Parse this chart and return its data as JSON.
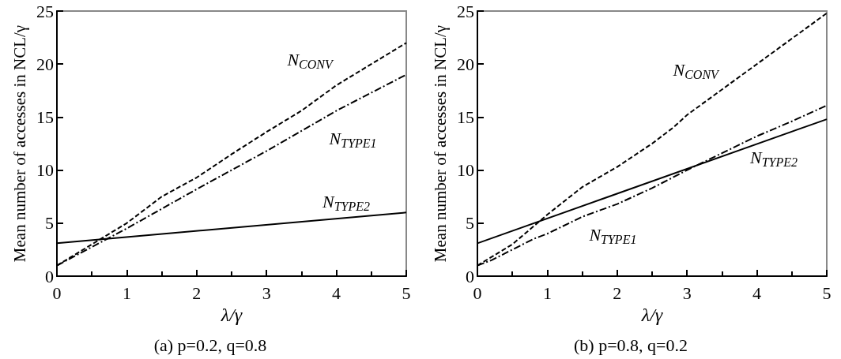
{
  "chart_data": [
    {
      "type": "line",
      "subtitle": "(a) p=0.2, q=0.8",
      "xlabel": "λ/γ",
      "ylabel": "Mean number of accesses in NCL/γ",
      "xlim": [
        0,
        5
      ],
      "xticks": [
        0,
        1,
        2,
        3,
        4,
        5
      ],
      "ylim": [
        0,
        25
      ],
      "yticks": [
        0,
        5,
        10,
        15,
        20,
        25
      ],
      "grid": false,
      "legend": false,
      "series": [
        {
          "name": "N$_{CONV}$",
          "color": "#000000",
          "line_style": "dashed",
          "x": [
            0,
            0.5,
            1,
            1.5,
            2,
            2.5,
            3,
            3.5,
            4,
            4.5,
            5
          ],
          "values": [
            1,
            3,
            5,
            7.5,
            9.3,
            11.5,
            13.6,
            15.6,
            18,
            20,
            22
          ]
        },
        {
          "name": "N$_{TYPE1}$",
          "color": "#000000",
          "line_style": "dashdot",
          "x": [
            0,
            1,
            2,
            3,
            4,
            5
          ],
          "values": [
            1,
            4.5,
            8.2,
            11.8,
            15.6,
            19
          ]
        },
        {
          "name": "N$_{TYPE2}$",
          "color": "#000000",
          "line_style": "solid",
          "x": [
            0,
            5
          ],
          "values": [
            3.1,
            6
          ]
        }
      ]
    },
    {
      "type": "line",
      "subtitle": "(b) p=0.8, q=0.2",
      "xlabel": "λ/γ",
      "ylabel": "Mean number of accesses in NCL/γ",
      "xlim": [
        0,
        5
      ],
      "xticks": [
        0,
        1,
        2,
        3,
        4,
        5
      ],
      "ylim": [
        0,
        25
      ],
      "yticks": [
        0,
        5,
        10,
        15,
        20,
        25
      ],
      "grid": false,
      "legend": false,
      "series": [
        {
          "name": "N$_{CONV}$",
          "color": "#000000",
          "line_style": "dashed",
          "x": [
            0,
            0.5,
            1,
            1.5,
            2,
            2.5,
            2.8,
            3,
            4,
            5
          ],
          "values": [
            1,
            3,
            5.8,
            8.4,
            10.3,
            12.5,
            14,
            15.2,
            20,
            24.8
          ]
        },
        {
          "name": "N$_{TYPE1}$",
          "color": "#000000",
          "line_style": "dashdot",
          "x": [
            0,
            0.2,
            0.5,
            0.8,
            1,
            1.5,
            2,
            2.5,
            3,
            3.5,
            4,
            4.5,
            5
          ],
          "values": [
            1,
            1.5,
            2.5,
            3.5,
            4,
            5.6,
            6.8,
            8.3,
            10,
            11.6,
            13.2,
            14.6,
            16.1
          ]
        },
        {
          "name": "N$_{TYPE2}$",
          "color": "#000000",
          "line_style": "solid",
          "x": [
            0,
            5
          ],
          "values": [
            3.1,
            14.8
          ]
        }
      ]
    }
  ]
}
